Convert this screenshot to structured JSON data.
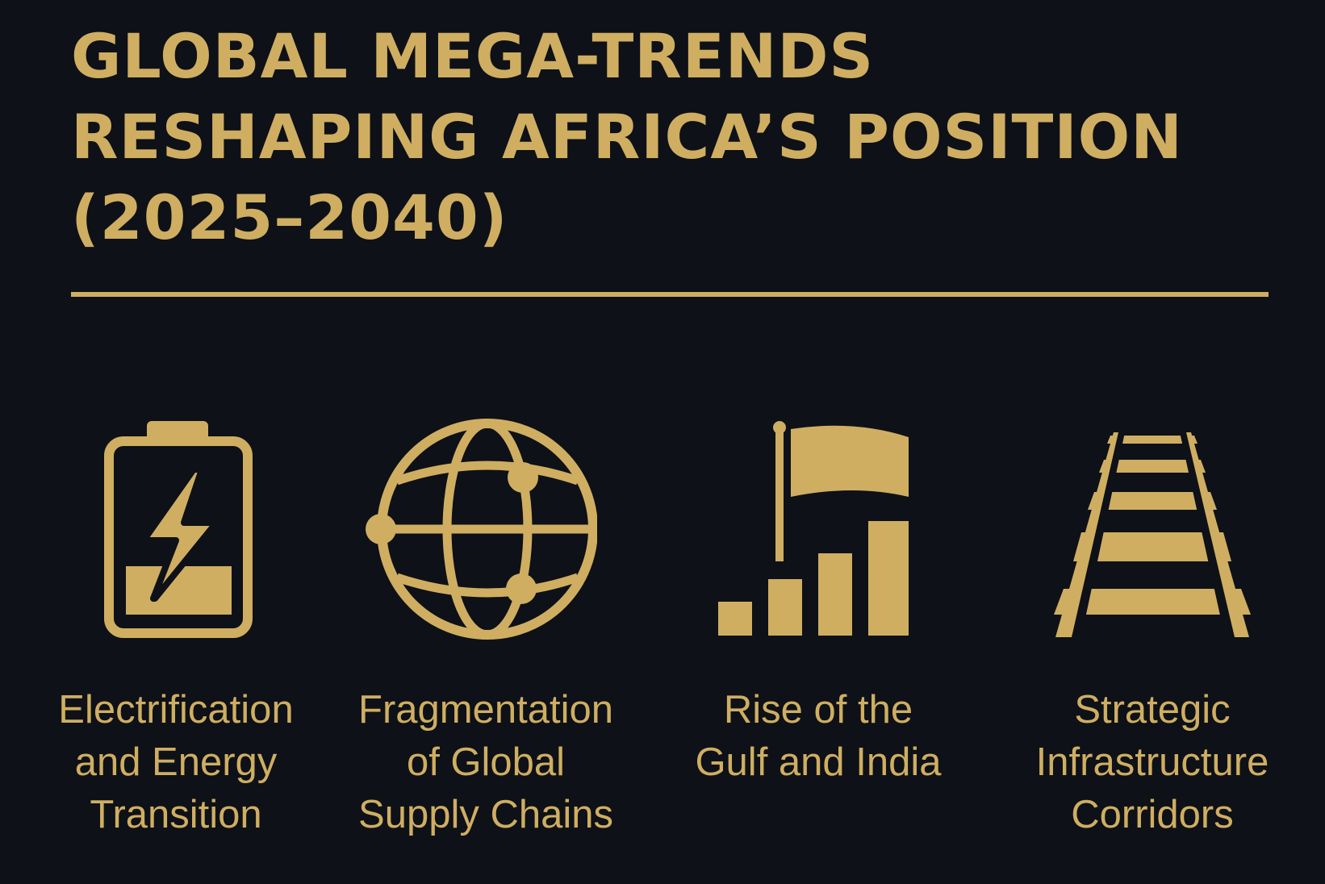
{
  "title": {
    "lines": [
      "GLOBAL MEGA-TRENDS",
      "RESHAPING AFRICA’S POSITION",
      "(2025–2040)"
    ]
  },
  "accent_color": "#cfae62",
  "background_color": "#0e1117",
  "trends": [
    {
      "icon": "battery-charging-icon",
      "caption_lines": [
        "Electrification",
        "and Energy",
        "Transition"
      ]
    },
    {
      "icon": "globe-network-icon",
      "caption_lines": [
        "Fragmentation",
        "of Global",
        "Supply Chains"
      ]
    },
    {
      "icon": "flag-rising-bars-icon",
      "caption_lines": [
        "Rise of the",
        "Gulf and India"
      ]
    },
    {
      "icon": "railway-track-icon",
      "caption_lines": [
        "Strategic",
        "Infrastructure",
        "Corridors"
      ]
    }
  ]
}
